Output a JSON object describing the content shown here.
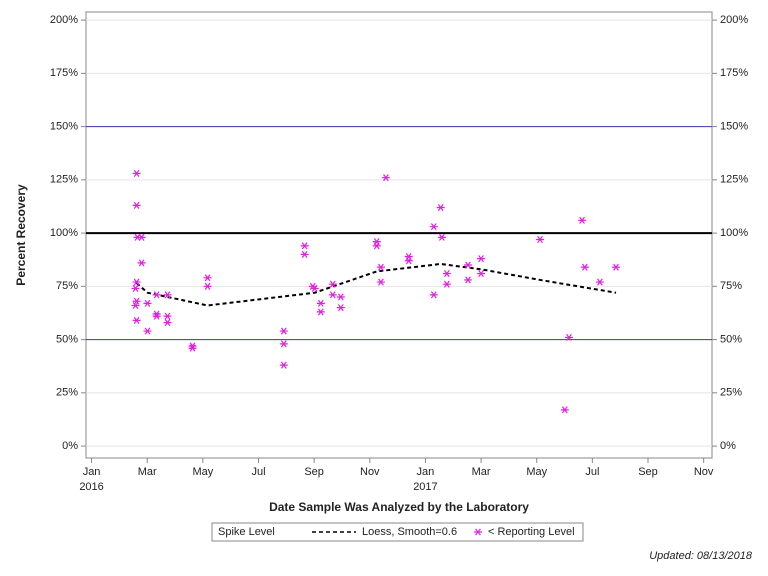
{
  "chart_data": {
    "type": "scatter",
    "x_label": "Date Sample Was Analyzed by the Laboratory",
    "y_label": "Percent Recovery",
    "legend_title": "Spike Level",
    "note": "Updated: 08/13/2018",
    "grid": true,
    "xlim": [
      -0.2,
      22.3
    ],
    "ylim": [
      -5.6,
      203.8
    ],
    "xticks": [
      {
        "value": 0,
        "label": "Jan"
      },
      {
        "value": 2,
        "label": "Mar"
      },
      {
        "value": 4,
        "label": "May"
      },
      {
        "value": 6,
        "label": "Jul"
      },
      {
        "value": 8,
        "label": "Sep"
      },
      {
        "value": 10,
        "label": "Nov"
      },
      {
        "value": 12,
        "label": "Jan"
      },
      {
        "value": 14,
        "label": "Mar"
      },
      {
        "value": 16,
        "label": "May"
      },
      {
        "value": 18,
        "label": "Jul"
      },
      {
        "value": 20,
        "label": "Sep"
      },
      {
        "value": 22,
        "label": "Nov"
      }
    ],
    "xtick_years": [
      {
        "value": 0,
        "label": "2016"
      },
      {
        "value": 12,
        "label": "2017"
      }
    ],
    "yticks": [
      {
        "value": 0,
        "label": "0%"
      },
      {
        "value": 25,
        "label": "25%"
      },
      {
        "value": 50,
        "label": "50%"
      },
      {
        "value": 75,
        "label": "75%"
      },
      {
        "value": 100,
        "label": "100%"
      },
      {
        "value": 125,
        "label": "125%"
      },
      {
        "value": 150,
        "label": "150%"
      },
      {
        "value": 175,
        "label": "175%"
      },
      {
        "value": 200,
        "label": "200%"
      }
    ],
    "reference_lines": [
      {
        "value": 150,
        "color": "#3a3aa8",
        "width": 1
      },
      {
        "value": 100,
        "color": "#000000",
        "width": 2
      },
      {
        "value": 50,
        "color": "#3a3aa8",
        "width": 1
      }
    ],
    "series": [
      {
        "name": "Loess, Smooth=0.6",
        "type": "line",
        "color": "#000000",
        "x": [
          1.62,
          2.01,
          4.17,
          8.02,
          10.25,
          12.55,
          14.0,
          16.12,
          18.85
        ],
        "values": [
          76.5,
          72,
          66,
          72,
          82,
          85.5,
          83,
          78,
          72
        ]
      },
      {
        "name": "< Reporting Level",
        "type": "scatter",
        "color": "#e020e0",
        "x": [
          1.62,
          1.62,
          1.65,
          1.8,
          1.8,
          1.62,
          1.58,
          1.62,
          1.58,
          1.62,
          2.01,
          2.01,
          2.34,
          2.34,
          2.34,
          2.73,
          2.73,
          2.73,
          3.63,
          3.63,
          4.17,
          4.17,
          6.91,
          6.91,
          6.91,
          7.66,
          7.66,
          7.95,
          8.02,
          8.24,
          8.24,
          8.67,
          8.67,
          8.96,
          8.96,
          10.25,
          10.25,
          10.4,
          10.4,
          10.58,
          11.4,
          11.4,
          12.3,
          12.3,
          12.55,
          12.59,
          12.77,
          12.77,
          13.53,
          13.53,
          14.0,
          14.0,
          16.12,
          17.01,
          17.16,
          17.63,
          17.73,
          18.27,
          18.85
        ],
        "values": [
          128,
          113,
          98,
          98,
          86,
          77,
          74,
          68,
          66,
          59,
          67,
          54,
          71,
          62,
          61,
          71,
          61,
          58,
          47,
          46,
          79,
          75,
          54,
          48,
          38,
          94,
          90,
          75,
          74,
          67,
          63,
          76,
          71,
          70,
          65,
          96,
          94,
          84,
          77,
          126,
          89,
          87,
          103,
          71,
          112,
          98,
          81,
          76,
          85,
          78,
          88,
          81,
          97,
          17,
          51,
          106,
          84,
          77,
          84
        ]
      }
    ]
  }
}
